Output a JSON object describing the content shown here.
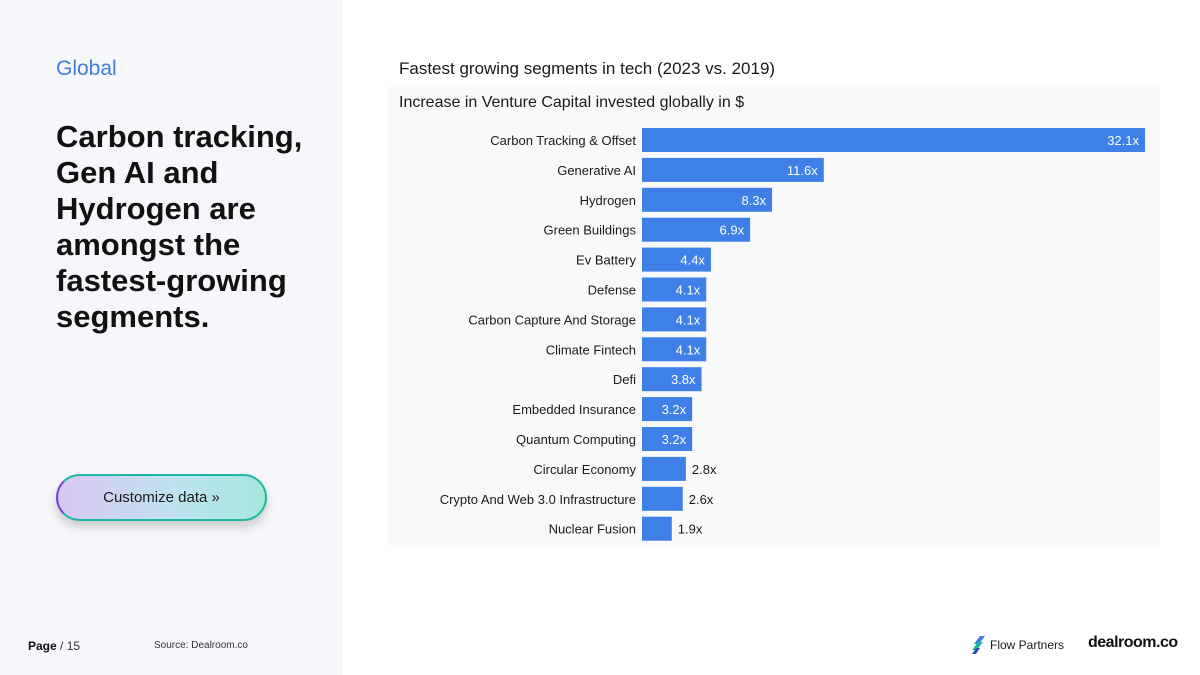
{
  "left": {
    "tag": "Global",
    "headline": "Carbon tracking, Gen AI and Hydrogen are amongst the fastest-growing segments.",
    "cta_label": "Customize data »"
  },
  "footer": {
    "page_label": "Page",
    "page_total": "/ 15",
    "source": "Source: Dealroom.co",
    "logo_flow": "Flow Partners",
    "logo_dealroom": "dealroom.co"
  },
  "colors": {
    "bar": "#3f7fe8",
    "accent": "#3f7fd6"
  },
  "chart_data": {
    "type": "bar",
    "orientation": "horizontal",
    "title": "Fastest growing segments in tech (2023 vs. 2019)",
    "subtitle": "Increase in Venture Capital invested globally in $",
    "categories": [
      "Carbon Tracking & Offset",
      "Generative AI",
      "Hydrogen",
      "Green Buildings",
      "Ev Battery",
      "Defense",
      "Carbon Capture And Storage",
      "Climate Fintech",
      "Defi",
      "Embedded Insurance",
      "Quantum Computing",
      "Circular Economy",
      "Crypto And Web 3.0 Infrastructure",
      "Nuclear Fusion"
    ],
    "values": [
      32.1,
      11.6,
      8.3,
      6.9,
      4.4,
      4.1,
      4.1,
      4.1,
      3.8,
      3.2,
      3.2,
      2.8,
      2.6,
      1.9
    ],
    "data_labels": [
      "32.1x",
      "11.6x",
      "8.3x",
      "6.9x",
      "4.4x",
      "4.1x",
      "4.1x",
      "4.1x",
      "3.8x",
      "3.2x",
      "3.2x",
      "2.8x",
      "2.6x",
      "1.9x"
    ],
    "xlim": [
      0,
      32.1
    ],
    "grid": false,
    "legend": "none"
  }
}
